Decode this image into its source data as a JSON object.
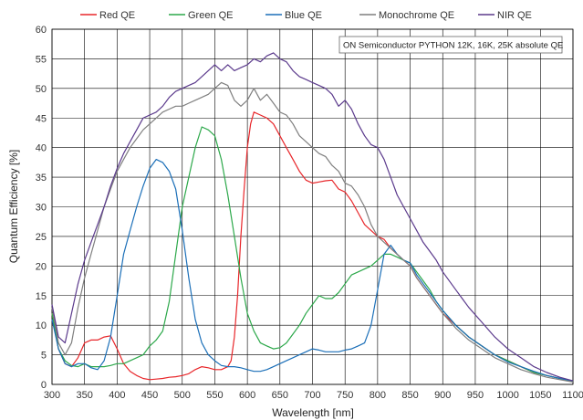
{
  "chart_data": {
    "type": "line",
    "title": "",
    "xlabel": "Wavelength [nm]",
    "ylabel": "Quantum Efficiency [%]",
    "xlim": [
      300,
      1100
    ],
    "ylim": [
      0,
      60
    ],
    "xticks": [
      300,
      350,
      400,
      450,
      500,
      550,
      600,
      650,
      700,
      750,
      800,
      850,
      900,
      950,
      1000,
      1050,
      1100
    ],
    "yticks": [
      0,
      5,
      10,
      15,
      20,
      25,
      30,
      35,
      40,
      45,
      50,
      55,
      60
    ],
    "grid": true,
    "legend_position": "top",
    "annotation": "ON Semiconductor PYTHON 12K, 16K, 25K absolute QE",
    "series": [
      {
        "name": "Red QE",
        "color": "#e8262a",
        "x": [
          300,
          310,
          320,
          330,
          340,
          350,
          360,
          370,
          380,
          390,
          400,
          410,
          420,
          430,
          440,
          450,
          460,
          470,
          480,
          490,
          500,
          510,
          520,
          530,
          540,
          550,
          560,
          570,
          575,
          580,
          585,
          590,
          595,
          600,
          605,
          610,
          620,
          630,
          640,
          650,
          660,
          670,
          680,
          690,
          700,
          710,
          720,
          730,
          740,
          750,
          760,
          770,
          780,
          790,
          800,
          810,
          820,
          830,
          840,
          850,
          860,
          870,
          880,
          890,
          900,
          920,
          940,
          960,
          980,
          1000,
          1020,
          1040,
          1060,
          1080,
          1100
        ],
        "y": [
          12,
          6,
          3.5,
          3,
          4.5,
          7,
          7.5,
          7.5,
          8,
          8.2,
          6,
          3.5,
          2.2,
          1.5,
          1,
          0.8,
          0.9,
          1,
          1.2,
          1.3,
          1.5,
          1.8,
          2.5,
          3,
          2.8,
          2.5,
          2.5,
          3,
          4,
          8,
          15,
          25,
          33,
          40,
          44,
          46,
          45.5,
          45,
          44,
          42,
          40,
          38,
          36,
          34.5,
          34,
          34.2,
          34.4,
          34.5,
          33,
          32.5,
          31,
          29,
          27,
          26,
          25,
          24.5,
          23,
          22,
          21,
          20,
          18,
          16.5,
          15,
          13.5,
          12,
          10,
          8,
          6.5,
          5,
          4,
          3,
          2,
          1.5,
          1,
          0.5
        ]
      },
      {
        "name": "Green QE",
        "color": "#2ca84a",
        "x": [
          300,
          310,
          320,
          330,
          340,
          350,
          360,
          370,
          380,
          390,
          400,
          410,
          420,
          430,
          440,
          450,
          460,
          470,
          480,
          490,
          500,
          510,
          520,
          530,
          540,
          550,
          560,
          570,
          580,
          590,
          600,
          610,
          620,
          630,
          640,
          650,
          660,
          670,
          680,
          690,
          700,
          710,
          720,
          730,
          740,
          750,
          760,
          770,
          780,
          790,
          800,
          810,
          820,
          830,
          840,
          850,
          860,
          870,
          880,
          890,
          900,
          920,
          940,
          960,
          980,
          1000,
          1020,
          1040,
          1060,
          1080,
          1100
        ],
        "y": [
          12,
          6,
          4,
          3.2,
          3,
          3.5,
          3,
          3,
          3,
          3.2,
          3.5,
          3.5,
          4,
          4.5,
          5,
          6.5,
          7.5,
          9,
          14,
          22,
          30,
          35,
          40,
          43.5,
          43,
          42,
          38,
          32,
          25,
          18,
          12,
          9,
          7,
          6.5,
          6,
          6.2,
          7,
          8.5,
          10,
          12,
          13.5,
          15,
          14.5,
          14.5,
          15.5,
          17,
          18.5,
          19,
          19.5,
          20,
          21,
          22,
          22,
          21.5,
          21,
          20.5,
          19,
          17.5,
          16,
          14,
          12.5,
          10,
          8,
          6.5,
          5,
          4,
          3,
          2,
          1.5,
          1,
          0.5
        ]
      },
      {
        "name": "Blue QE",
        "color": "#1b6fb8",
        "x": [
          300,
          310,
          320,
          330,
          340,
          350,
          360,
          370,
          380,
          390,
          400,
          410,
          420,
          430,
          440,
          450,
          460,
          470,
          480,
          490,
          500,
          510,
          520,
          530,
          540,
          550,
          560,
          570,
          580,
          590,
          600,
          610,
          620,
          630,
          640,
          650,
          660,
          670,
          680,
          690,
          700,
          710,
          720,
          730,
          740,
          750,
          760,
          770,
          780,
          790,
          800,
          810,
          820,
          830,
          840,
          850,
          860,
          870,
          880,
          890,
          900,
          920,
          940,
          960,
          980,
          1000,
          1020,
          1040,
          1060,
          1080,
          1100
        ],
        "y": [
          11,
          6,
          3.5,
          3,
          3.5,
          3.5,
          2.8,
          2.5,
          4,
          8,
          15,
          22,
          26,
          30,
          33.5,
          36.5,
          38,
          37.5,
          36,
          33,
          26,
          18,
          11,
          7,
          5,
          4,
          3.2,
          3,
          3,
          2.8,
          2.5,
          2.2,
          2.2,
          2.5,
          3,
          3.5,
          4,
          4.5,
          5,
          5.5,
          6,
          5.8,
          5.5,
          5.5,
          5.5,
          5.8,
          6,
          6.5,
          7,
          10,
          16,
          22,
          23.5,
          22,
          21,
          20.5,
          18.5,
          17,
          15.5,
          14,
          12.5,
          10,
          8,
          6.5,
          5,
          3.8,
          3,
          2.2,
          1.5,
          1,
          0.6
        ]
      },
      {
        "name": "Monochrome QE",
        "color": "#7f7f7f",
        "x": [
          300,
          310,
          320,
          330,
          340,
          350,
          360,
          370,
          380,
          390,
          400,
          410,
          420,
          430,
          440,
          450,
          460,
          470,
          480,
          490,
          500,
          510,
          520,
          530,
          540,
          550,
          560,
          570,
          580,
          590,
          600,
          610,
          620,
          630,
          640,
          650,
          660,
          670,
          680,
          690,
          700,
          710,
          720,
          730,
          740,
          750,
          760,
          770,
          780,
          790,
          800,
          810,
          820,
          830,
          840,
          850,
          860,
          870,
          880,
          890,
          900,
          920,
          940,
          960,
          980,
          1000,
          1020,
          1040,
          1060,
          1080,
          1100
        ],
        "y": [
          13,
          7,
          5,
          7,
          13,
          18,
          22,
          26,
          30,
          33,
          36,
          38,
          40,
          41.5,
          43,
          44,
          45,
          46,
          46.5,
          47,
          47,
          47.5,
          48,
          48.5,
          49,
          50,
          51,
          50.5,
          48,
          47,
          48,
          50,
          48,
          49,
          47.5,
          46,
          45.5,
          44,
          42,
          41,
          40,
          39,
          38.5,
          37,
          36,
          34,
          33.5,
          32,
          30,
          27,
          25,
          24,
          23,
          22,
          21,
          20,
          18,
          16.5,
          15,
          13.5,
          12,
          9.5,
          7.5,
          6,
          4.5,
          3.5,
          2.5,
          1.8,
          1.2,
          0.8,
          0.4
        ]
      },
      {
        "name": "NIR QE",
        "color": "#5b3a8c",
        "x": [
          300,
          310,
          320,
          330,
          340,
          350,
          360,
          370,
          380,
          390,
          400,
          410,
          420,
          430,
          440,
          450,
          460,
          470,
          480,
          490,
          500,
          510,
          520,
          530,
          540,
          550,
          560,
          570,
          580,
          590,
          600,
          610,
          620,
          630,
          640,
          650,
          660,
          670,
          680,
          690,
          700,
          710,
          720,
          730,
          740,
          750,
          760,
          770,
          780,
          790,
          800,
          810,
          820,
          830,
          840,
          850,
          860,
          870,
          880,
          890,
          900,
          920,
          940,
          960,
          980,
          1000,
          1020,
          1040,
          1060,
          1080,
          1100
        ],
        "y": [
          13.5,
          8,
          7,
          12,
          17,
          21,
          24,
          27,
          30,
          33.5,
          36.5,
          39,
          41,
          43,
          45,
          45.5,
          46,
          47,
          48.5,
          49.5,
          50,
          50.5,
          51,
          52,
          53,
          54,
          53,
          54,
          53,
          53.5,
          54,
          55,
          54.5,
          55.5,
          56,
          55,
          54.5,
          53,
          52,
          51.5,
          51,
          50.5,
          50,
          49,
          47,
          48,
          46.5,
          44,
          42,
          40.5,
          40,
          38,
          35,
          32,
          30,
          28,
          26,
          24,
          22.5,
          21,
          19,
          16,
          13,
          10.5,
          8,
          6,
          4.5,
          3,
          2,
          1.2,
          0.6
        ]
      }
    ]
  }
}
